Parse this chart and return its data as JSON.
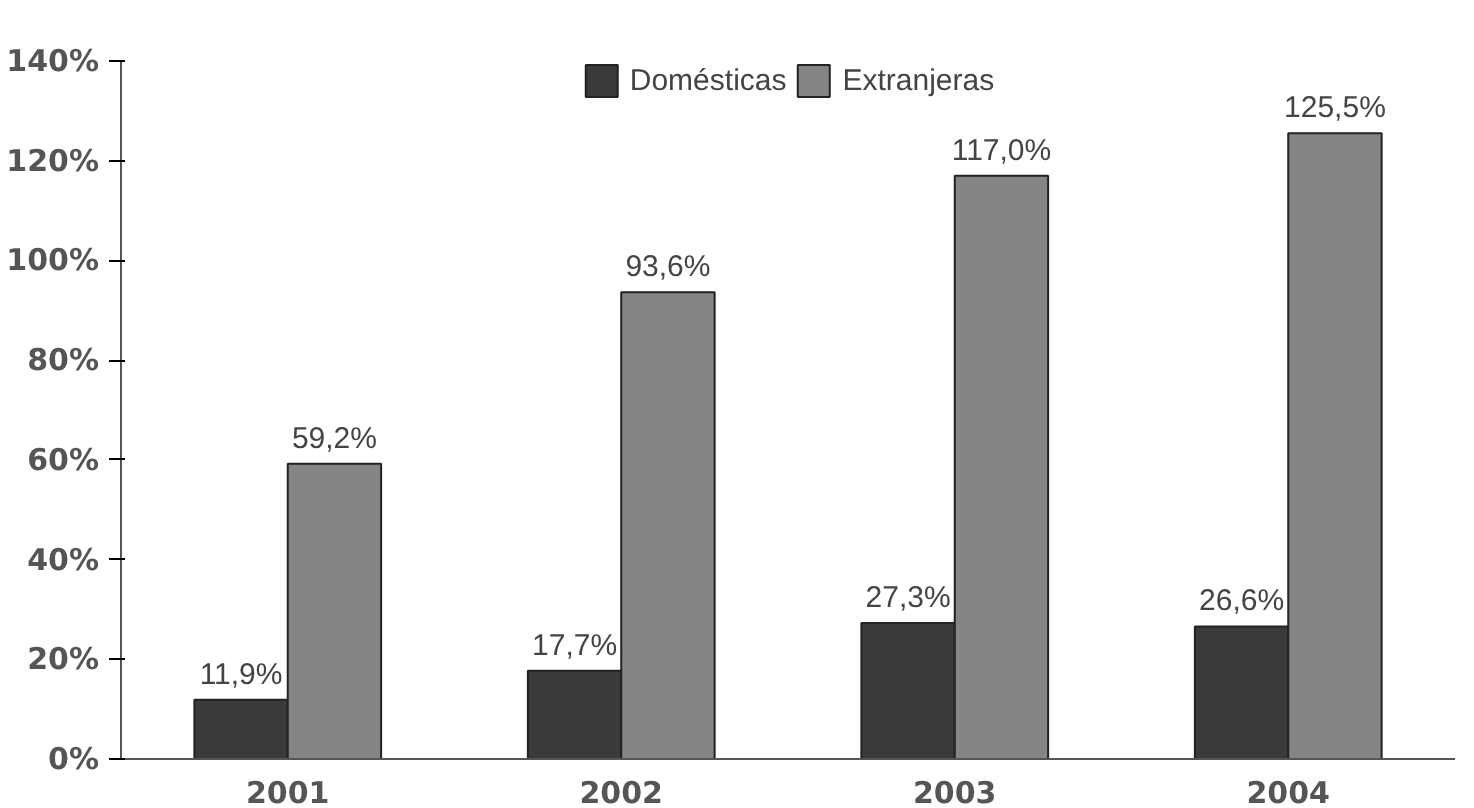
{
  "chart_data": {
    "type": "bar",
    "categories": [
      "2001",
      "2002",
      "2003",
      "2004"
    ],
    "series": [
      {
        "name": "Domésticas",
        "color": "#3a3a3a",
        "values": [
          11.9,
          17.7,
          27.3,
          26.6
        ],
        "value_labels": [
          "11,9%",
          "17,7%",
          "27,3%",
          "26,6%"
        ]
      },
      {
        "name": "Extranjeras",
        "color": "#858585",
        "values": [
          59.2,
          93.6,
          117.0,
          125.5
        ],
        "value_labels": [
          "59,2%",
          "93,6%",
          "117,0%",
          "125,5%"
        ]
      }
    ],
    "ylim": [
      0,
      140
    ],
    "yticks": [
      {
        "value": 0,
        "label": "0%"
      },
      {
        "value": 20,
        "label": "20%"
      },
      {
        "value": 40,
        "label": "40%"
      },
      {
        "value": 60,
        "label": "60%"
      },
      {
        "value": 80,
        "label": "80%"
      },
      {
        "value": 100,
        "label": "100%"
      },
      {
        "value": 120,
        "label": "120%"
      },
      {
        "value": 140,
        "label": "140%"
      }
    ],
    "grid": false,
    "legend": "top"
  }
}
